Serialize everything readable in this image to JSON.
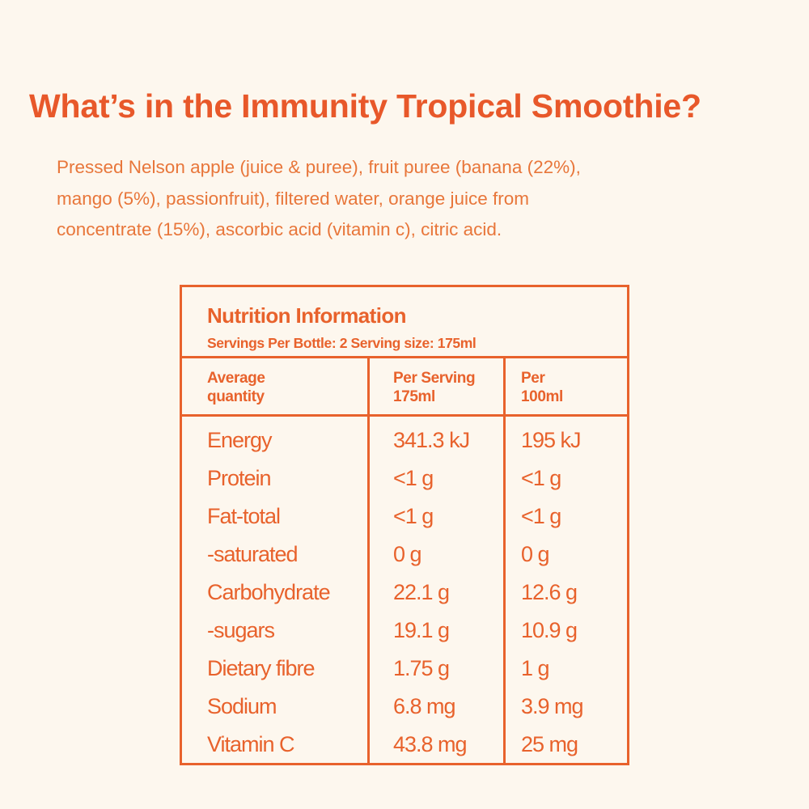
{
  "heading": "What’s in the Immunity Tropical Smoothie?",
  "ingredients_lines": [
    "Pressed Nelson apple (juice & puree), fruit puree (banana (22%),",
    "mango (5%), passionfruit), filtered water, orange juice from",
    "concentrate (15%), ascorbic acid (vitamin c), citric acid."
  ],
  "panel": {
    "title": "Nutrition Information",
    "subtitle": "Servings Per Bottle: 2 Serving size: 175ml",
    "columns": [
      {
        "line1": "Average",
        "line2": "quantity"
      },
      {
        "line1": "Per Serving",
        "line2": "175ml"
      },
      {
        "line1": "Per",
        "line2": "100ml"
      }
    ],
    "rows": [
      {
        "name": "Energy",
        "per_serving": "341.3 kJ",
        "per_100ml": "195 kJ"
      },
      {
        "name": "Protein",
        "per_serving": "<1 g",
        "per_100ml": "<1 g"
      },
      {
        "name": "Fat-total",
        "per_serving": "<1 g",
        "per_100ml": "<1 g"
      },
      {
        "name": "-saturated",
        "per_serving": "0 g",
        "per_100ml": "0 g"
      },
      {
        "name": "Carbohydrate",
        "per_serving": "22.1 g",
        "per_100ml": "12.6 g"
      },
      {
        "name": "-sugars",
        "per_serving": "19.1 g",
        "per_100ml": "10.9 g"
      },
      {
        "name": "Dietary fibre",
        "per_serving": "1.75 g",
        "per_100ml": "1 g"
      },
      {
        "name": "Sodium",
        "per_serving": "6.8 mg",
        "per_100ml": "3.9 mg"
      },
      {
        "name": "Vitamin C",
        "per_serving": "43.8 mg",
        "per_100ml": "25 mg"
      }
    ]
  },
  "colors": {
    "background": "#fdf7ee",
    "accent": "#e8622c"
  }
}
